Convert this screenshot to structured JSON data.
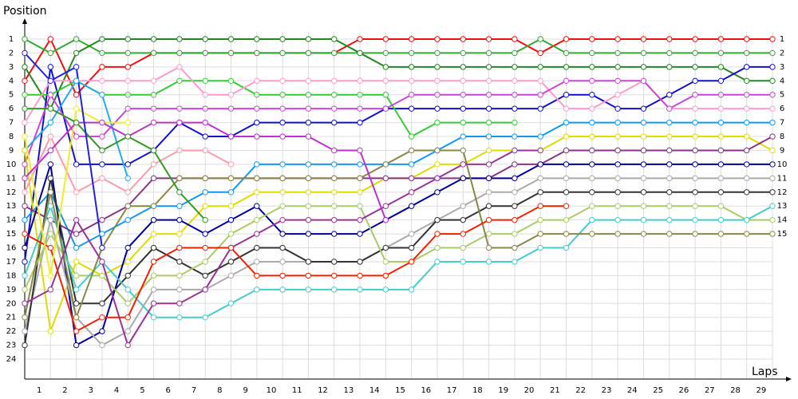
{
  "chart_data": {
    "type": "line",
    "ylabel": "Position",
    "xlabel": "Laps",
    "xlim": [
      0,
      29
    ],
    "xticks": [
      1,
      2,
      3,
      4,
      5,
      6,
      7,
      8,
      9,
      10,
      11,
      12,
      13,
      14,
      15,
      16,
      17,
      18,
      19,
      20,
      21,
      22,
      23,
      24,
      25,
      26,
      27,
      28,
      29
    ],
    "ylim": [
      1,
      24
    ],
    "yticks": [
      1,
      2,
      3,
      4,
      5,
      6,
      7,
      8,
      9,
      10,
      11,
      12,
      13,
      14,
      15,
      16,
      17,
      18,
      19,
      20,
      21,
      22,
      23,
      24
    ],
    "y2ticks": [
      1,
      2,
      3,
      4,
      5,
      6,
      7,
      8,
      9,
      10,
      11,
      12,
      13,
      14,
      15
    ],
    "inverted": true,
    "grid": true,
    "series": [
      {
        "color": "#ee1111",
        "values": [
          4,
          1,
          5,
          3,
          3,
          2,
          2,
          2,
          2,
          2,
          2,
          2,
          2,
          1,
          1,
          1,
          1,
          1,
          1,
          1,
          2,
          1,
          1,
          1,
          1,
          1,
          1,
          1,
          1,
          1
        ]
      },
      {
        "color": "#33aa33",
        "values": [
          1,
          2,
          1,
          2,
          2,
          2,
          2,
          2,
          2,
          2,
          2,
          2,
          2,
          2,
          2,
          2,
          2,
          2,
          2,
          2,
          1,
          2,
          2,
          2,
          2,
          2,
          2,
          2,
          2,
          2
        ]
      },
      {
        "color": "#228822",
        "values": [
          3,
          6,
          2,
          1,
          1,
          1,
          1,
          1,
          1,
          1,
          1,
          1,
          1,
          2,
          3,
          3,
          3,
          3,
          3,
          3,
          3,
          3,
          3,
          3,
          3,
          3,
          3,
          3,
          4,
          4
        ]
      },
      {
        "color": "#1111cc",
        "values": [
          17,
          3,
          10,
          10,
          10,
          9,
          7,
          8,
          8,
          7,
          7,
          7,
          7,
          7,
          6,
          6,
          6,
          6,
          6,
          6,
          6,
          5,
          5,
          6,
          6,
          5,
          4,
          4,
          3,
          3
        ]
      },
      {
        "color": "#33cc33",
        "values": [
          5,
          5,
          4,
          5,
          5,
          5,
          4,
          4,
          4,
          5,
          5,
          5,
          5,
          5,
          5,
          8,
          7,
          7,
          7,
          7,
          null,
          null,
          null,
          null,
          null,
          null,
          null,
          null,
          null,
          null
        ]
      },
      {
        "color": "#ff99cc",
        "values": [
          7,
          4,
          4,
          4,
          4,
          4,
          3,
          5,
          5,
          4,
          4,
          4,
          4,
          4,
          4,
          4,
          4,
          4,
          4,
          4,
          4,
          6,
          6,
          5,
          4,
          6,
          6,
          6,
          6,
          6
        ]
      },
      {
        "color": "#cc44dd",
        "values": [
          10,
          5,
          8,
          8,
          6,
          6,
          6,
          6,
          6,
          6,
          6,
          6,
          6,
          6,
          6,
          5,
          5,
          5,
          5,
          5,
          5,
          4,
          4,
          4,
          4,
          6,
          5,
          5,
          5,
          5
        ]
      },
      {
        "color": "#1199ee",
        "values": [
          14,
          12,
          16,
          15,
          14,
          13,
          13,
          12,
          12,
          10,
          10,
          10,
          10,
          10,
          10,
          10,
          9,
          8,
          8,
          8,
          8,
          7,
          7,
          7,
          7,
          7,
          7,
          7,
          7,
          7
        ]
      },
      {
        "color": "#22aaee",
        "values": [
          9,
          7,
          4,
          5,
          11,
          null,
          null,
          null,
          null,
          null,
          null,
          null,
          null,
          null,
          null,
          null,
          null,
          null,
          null,
          null,
          null,
          null,
          null,
          null,
          null,
          null,
          null,
          null,
          null,
          null
        ]
      },
      {
        "color": "#dddd00",
        "values": [
          9,
          22,
          17,
          18,
          17,
          15,
          15,
          13,
          13,
          12,
          12,
          12,
          12,
          12,
          11,
          11,
          10,
          10,
          9,
          9,
          9,
          8,
          8,
          8,
          8,
          8,
          8,
          8,
          8,
          9
        ]
      },
      {
        "color": "#883388",
        "values": [
          13,
          14,
          15,
          14,
          13,
          11,
          11,
          11,
          11,
          11,
          11,
          11,
          11,
          11,
          11,
          11,
          11,
          11,
          11,
          10,
          10,
          9,
          9,
          9,
          9,
          9,
          9,
          9,
          9,
          8
        ]
      },
      {
        "color": "#000099",
        "values": [
          16,
          10,
          23,
          22,
          16,
          14,
          14,
          15,
          14,
          13,
          15,
          15,
          15,
          15,
          14,
          13,
          12,
          11,
          11,
          11,
          10,
          10,
          10,
          10,
          10,
          10,
          10,
          10,
          10,
          10
        ]
      },
      {
        "color": "#aaaaaa",
        "values": [
          22,
          14,
          21,
          23,
          22,
          19,
          19,
          19,
          18,
          17,
          17,
          17,
          17,
          17,
          16,
          15,
          14,
          13,
          12,
          12,
          11,
          11,
          11,
          11,
          11,
          11,
          11,
          11,
          11,
          11
        ]
      },
      {
        "color": "#333333",
        "values": [
          23,
          11,
          20,
          20,
          18,
          16,
          17,
          18,
          17,
          16,
          16,
          17,
          17,
          17,
          16,
          16,
          14,
          14,
          13,
          13,
          12,
          12,
          12,
          12,
          12,
          12,
          12,
          12,
          12,
          12
        ]
      },
      {
        "color": "#aacc66",
        "values": [
          19,
          15,
          18,
          18,
          20,
          18,
          18,
          17,
          15,
          14,
          13,
          13,
          13,
          13,
          17,
          17,
          16,
          16,
          15,
          15,
          14,
          14,
          13,
          13,
          13,
          13,
          13,
          13,
          14,
          14
        ]
      },
      {
        "color": "#44cccc",
        "values": [
          18,
          13,
          19,
          17,
          19,
          21,
          21,
          21,
          20,
          19,
          19,
          19,
          19,
          19,
          19,
          19,
          17,
          17,
          17,
          17,
          16,
          16,
          14,
          14,
          14,
          14,
          14,
          14,
          14,
          13
        ]
      },
      {
        "color": "#888844",
        "values": [
          21,
          12,
          21,
          16,
          13,
          13,
          11,
          11,
          11,
          11,
          11,
          11,
          11,
          11,
          10,
          9,
          9,
          9,
          16,
          16,
          15,
          15,
          15,
          15,
          15,
          15,
          15,
          15,
          15,
          15
        ]
      },
      {
        "color": "#993399",
        "values": [
          20,
          19,
          14,
          17,
          23,
          20,
          20,
          19,
          16,
          15,
          14,
          14,
          14,
          14,
          13,
          12,
          11,
          10,
          10,
          9,
          9,
          null,
          null,
          null,
          null,
          null,
          null,
          null,
          null,
          null
        ]
      },
      {
        "color": "#ee2200",
        "values": [
          15,
          16,
          22,
          21,
          21,
          17,
          16,
          16,
          16,
          18,
          18,
          18,
          18,
          18,
          18,
          17,
          15,
          15,
          14,
          14,
          13,
          13,
          null,
          null,
          null,
          null,
          null,
          null,
          null,
          null
        ]
      },
      {
        "color": "#ff99aa",
        "values": [
          12,
          8,
          12,
          11,
          12,
          10,
          9,
          9,
          10,
          null,
          null,
          null,
          null,
          null,
          null,
          null,
          null,
          null,
          null,
          null,
          null,
          null,
          null,
          null,
          null,
          null,
          null,
          null,
          null,
          null
        ]
      },
      {
        "color": "#eeee22",
        "values": [
          8,
          18,
          6,
          7,
          7,
          null,
          null,
          null,
          null,
          null,
          null,
          null,
          null,
          null,
          null,
          null,
          null,
          null,
          null,
          null,
          null,
          null,
          null,
          null,
          null,
          null,
          null,
          null,
          null,
          null
        ]
      },
      {
        "color": "#bb33cc",
        "values": [
          11,
          9,
          7,
          7,
          8,
          7,
          7,
          7,
          8,
          8,
          8,
          8,
          9,
          9,
          14,
          null,
          null,
          null,
          null,
          null,
          null,
          null,
          null,
          null,
          null,
          null,
          null,
          null,
          null,
          null
        ]
      },
      {
        "color": "#339922",
        "values": [
          6,
          6,
          7,
          9,
          8,
          9,
          12,
          14,
          null,
          null,
          null,
          null,
          null,
          null,
          null,
          null,
          null,
          null,
          null,
          null,
          null,
          null,
          null,
          null,
          null,
          null,
          null,
          null,
          null,
          null
        ]
      },
      {
        "color": "#2222dd",
        "values": [
          2,
          4,
          3,
          16,
          null,
          null,
          null,
          null,
          null,
          null,
          null,
          null,
          null,
          null,
          null,
          null,
          null,
          null,
          null,
          null,
          null,
          null,
          null,
          null,
          null,
          null,
          null,
          null,
          null,
          null
        ]
      }
    ]
  }
}
